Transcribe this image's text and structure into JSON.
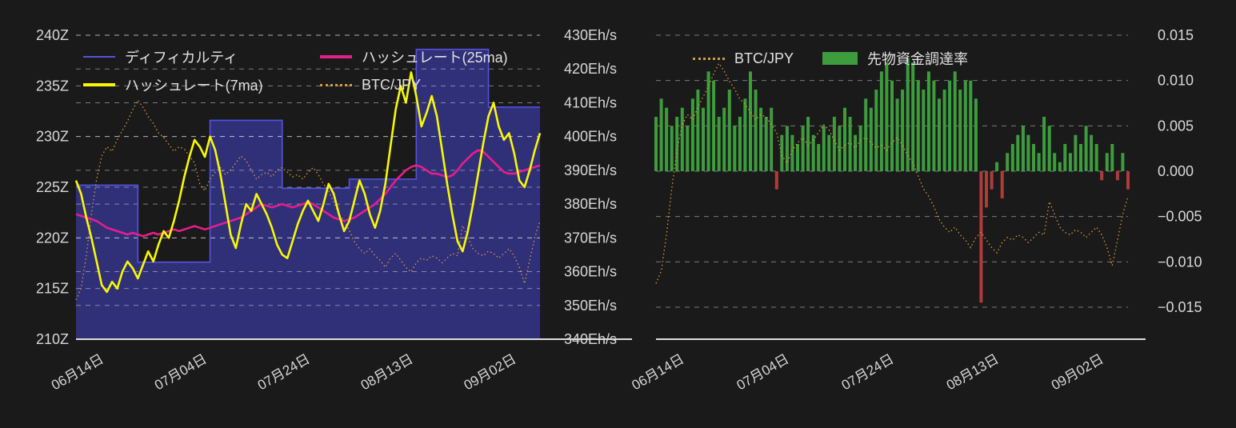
{
  "theme": {
    "background": "#1a1a1a",
    "text_color": "#d8d8d8",
    "grid_color": "rgba(255,255,255,0.42)",
    "axis_color": "#dddddd"
  },
  "chart_data": [
    {
      "type": "line",
      "days_count": 91,
      "x_tick_labels": [
        {
          "day": 4,
          "label": "06月14日"
        },
        {
          "day": 24,
          "label": "07月04日"
        },
        {
          "day": 44,
          "label": "07月24日"
        },
        {
          "day": 64,
          "label": "08月13日"
        },
        {
          "day": 84,
          "label": "09月02日"
        }
      ],
      "y_left": {
        "min": 210,
        "max": 240,
        "step": 5,
        "unit": "Z",
        "tick_labels": [
          "240Z",
          "235Z",
          "230Z",
          "225Z",
          "220Z",
          "215Z",
          "210Z"
        ]
      },
      "y_right": {
        "min": 340,
        "max": 430,
        "step": 10,
        "unit": "Eh/s",
        "tick_labels": [
          "430Eh/s",
          "420Eh/s",
          "410Eh/s",
          "400Eh/s",
          "390Eh/s",
          "380Eh/s",
          "370Eh/s",
          "360Eh/s",
          "350Eh/s",
          "340Eh/s"
        ]
      },
      "series": [
        {
          "key": "difficulty",
          "name": "ディフィカルティ",
          "axis": "left",
          "style": "step-area",
          "color": "#5353e0",
          "fill": "rgba(70,70,215,0.5)",
          "steps": [
            {
              "from_day": 0,
              "to_day": 11,
              "value": 225.2
            },
            {
              "from_day": 12,
              "to_day": 25,
              "value": 217.6
            },
            {
              "from_day": 26,
              "to_day": 39,
              "value": 231.6
            },
            {
              "from_day": 40,
              "to_day": 52,
              "value": 224.9
            },
            {
              "from_day": 53,
              "to_day": 65,
              "value": 225.8
            },
            {
              "from_day": 66,
              "to_day": 79,
              "value": 238.6
            },
            {
              "from_day": 80,
              "to_day": 90,
              "value": 232.9
            }
          ]
        },
        {
          "key": "hashrate_7ma",
          "name": "ハッシュレート(7ma)",
          "axis": "right",
          "style": "line-thick",
          "color": "#f8f806",
          "values": [
            387,
            383,
            376,
            370,
            363,
            356,
            354,
            357,
            355,
            360,
            363,
            361,
            358,
            362,
            366,
            363,
            368,
            372,
            370,
            375,
            381,
            388,
            394,
            399,
            397,
            394,
            400,
            396,
            389,
            380,
            371,
            367,
            374,
            380,
            378,
            383,
            380,
            377,
            373,
            368,
            365,
            364,
            369,
            374,
            378,
            381,
            378,
            375,
            380,
            386,
            383,
            377,
            372,
            375,
            381,
            387,
            383,
            377,
            373,
            378,
            386,
            397,
            408,
            415,
            410,
            419,
            412,
            403,
            407,
            412,
            406,
            396,
            386,
            377,
            369,
            366,
            372,
            380,
            389,
            398,
            406,
            410,
            403,
            399,
            401,
            395,
            387,
            385,
            390,
            396,
            401
          ]
        },
        {
          "key": "hashrate_25ma",
          "name": "ハッシュレート(25ma)",
          "axis": "right",
          "style": "line-thick",
          "color": "#e61e8c",
          "values": [
            377,
            376.5,
            376,
            375.5,
            375,
            374,
            373,
            372.5,
            372,
            371.5,
            371,
            371.5,
            371,
            370.5,
            371,
            371.5,
            371,
            371.5,
            372,
            372.5,
            372,
            372.5,
            373,
            373.5,
            373,
            372.5,
            373,
            373.5,
            374,
            374.5,
            375,
            375.5,
            376,
            377,
            378,
            379,
            380,
            379.5,
            379,
            379.5,
            380,
            379.5,
            379,
            379.5,
            380,
            380.5,
            380,
            379,
            378,
            377,
            376,
            375.5,
            375,
            375.5,
            376,
            377,
            378,
            379,
            380,
            381.5,
            383,
            385,
            387,
            388.5,
            390,
            391,
            391.5,
            391,
            390,
            389,
            389,
            388.5,
            388,
            388.5,
            390,
            392,
            393.5,
            395,
            396,
            395.5,
            394,
            392.5,
            391,
            389.5,
            389,
            389,
            389.5,
            390,
            390.5,
            391,
            391.5
          ]
        },
        {
          "key": "btc_jpy",
          "name": "BTC/JPY",
          "axis": "hidden",
          "style": "line-dotted",
          "color": "#d79b3f",
          "values_normalized": [
            0.08,
            0.13,
            0.27,
            0.45,
            0.6,
            0.7,
            0.74,
            0.72,
            0.77,
            0.81,
            0.85,
            0.9,
            0.94,
            0.91,
            0.87,
            0.84,
            0.8,
            0.78,
            0.75,
            0.72,
            0.74,
            0.73,
            0.7,
            0.67,
            0.58,
            0.55,
            0.6,
            0.63,
            0.65,
            0.62,
            0.64,
            0.67,
            0.7,
            0.68,
            0.64,
            0.6,
            0.62,
            0.63,
            0.61,
            0.64,
            0.65,
            0.63,
            0.61,
            0.62,
            0.6,
            0.63,
            0.65,
            0.62,
            0.58,
            0.55,
            0.5,
            0.45,
            0.42,
            0.38,
            0.33,
            0.3,
            0.28,
            0.3,
            0.27,
            0.25,
            0.22,
            0.26,
            0.28,
            0.25,
            0.22,
            0.2,
            0.24,
            0.26,
            0.25,
            0.27,
            0.26,
            0.24,
            0.26,
            0.28,
            0.27,
            0.4,
            0.35,
            0.3,
            0.28,
            0.27,
            0.29,
            0.28,
            0.26,
            0.28,
            0.3,
            0.27,
            0.22,
            0.15,
            0.25,
            0.35,
            0.42
          ]
        }
      ]
    },
    {
      "type": "bar",
      "days_count": 91,
      "x_tick_labels": [
        {
          "day": 4,
          "label": "06月14日"
        },
        {
          "day": 24,
          "label": "07月04日"
        },
        {
          "day": 44,
          "label": "07月24日"
        },
        {
          "day": 64,
          "label": "08月13日"
        },
        {
          "day": 84,
          "label": "09月02日"
        }
      ],
      "y_right": {
        "min": -0.015,
        "max": 0.015,
        "step": 0.005,
        "tick_labels": [
          "0.015",
          "0.010",
          "0.005",
          "0.000",
          "−0.005",
          "−0.010",
          "−0.015"
        ]
      },
      "series": [
        {
          "key": "funding_rate",
          "name": "先物資金調達率",
          "style": "bar",
          "color_positive": "#3d9c3d",
          "color_negative": "#b03b3b",
          "values": [
            0.006,
            0.008,
            0.007,
            0.005,
            0.006,
            0.007,
            0.005,
            0.008,
            0.009,
            0.007,
            0.011,
            0.01,
            0.006,
            0.007,
            0.009,
            0.005,
            0.006,
            0.008,
            0.011,
            0.009,
            0.007,
            0.006,
            0.007,
            -0.002,
            0.004,
            0.005,
            0.004,
            0.003,
            0.005,
            0.006,
            0.004,
            0.003,
            0.005,
            0.004,
            0.006,
            0.005,
            0.007,
            0.006,
            0.004,
            0.005,
            0.008,
            0.007,
            0.009,
            0.011,
            0.012,
            0.01,
            0.008,
            0.009,
            0.0125,
            0.012,
            0.01,
            0.009,
            0.011,
            0.01,
            0.008,
            0.009,
            0.01,
            0.011,
            0.009,
            0.01,
            0.01,
            0.008,
            -0.0145,
            -0.004,
            -0.002,
            0.001,
            -0.003,
            0.002,
            0.003,
            0.004,
            0.005,
            0.004,
            0.003,
            0.002,
            0.006,
            0.005,
            0.002,
            0.001,
            0.003,
            0.002,
            0.004,
            0.003,
            0.005,
            0.004,
            0.003,
            -0.001,
            0.002,
            0.003,
            -0.001,
            0.002,
            -0.002
          ]
        },
        {
          "key": "btc_jpy",
          "name": "BTC/JPY",
          "style": "line-dotted",
          "color": "#d79b3f",
          "shares_values_of": "chart_data.0.series.3"
        }
      ]
    }
  ]
}
